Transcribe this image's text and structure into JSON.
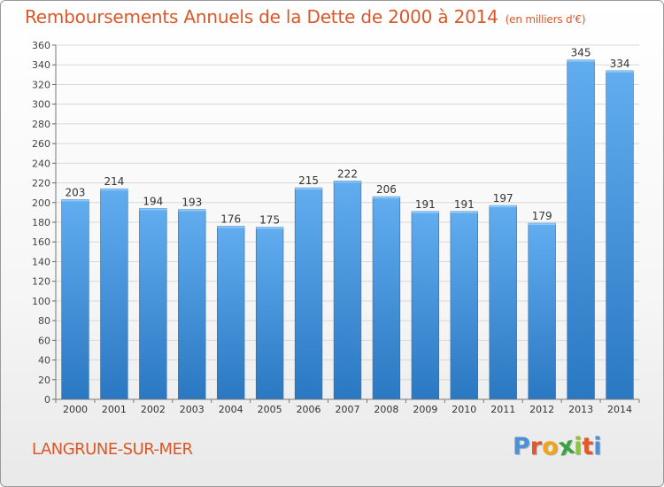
{
  "title": "Remboursements Annuels de la Dette de 2000 à 2014",
  "subtitle": "(en milliers d'€)",
  "location": "LANGRUNE-SUR-MER",
  "logo_text": "Proxiti",
  "logo_letters": [
    "P",
    "r",
    "o",
    "x",
    "i",
    "t",
    "i"
  ],
  "logo_colors": [
    "#4f8fd6",
    "#e2582b",
    "#f0a31c",
    "#3aa33f",
    "#8bc53f",
    "#e2582b",
    "#4f8fd6"
  ],
  "colors": {
    "bar": "#3f8fd8",
    "bar_dark": "#2a75bd",
    "title": "#d9582a",
    "grid": "#d5d5d5",
    "axis": "#555555"
  },
  "chart_data": {
    "type": "bar",
    "title": "Remboursements Annuels de la Dette de 2000 à 2014",
    "categories": [
      "2000",
      "2001",
      "2002",
      "2003",
      "2004",
      "2005",
      "2006",
      "2007",
      "2008",
      "2009",
      "2010",
      "2011",
      "2012",
      "2013",
      "2014"
    ],
    "values": [
      203,
      214,
      194,
      193,
      176,
      175,
      215,
      222,
      206,
      191,
      191,
      197,
      179,
      345,
      334
    ],
    "ylim": [
      0,
      360
    ],
    "yticks": [
      0,
      20,
      40,
      60,
      80,
      100,
      120,
      140,
      160,
      180,
      200,
      220,
      240,
      260,
      280,
      300,
      320,
      340,
      360
    ],
    "grid": true
  }
}
